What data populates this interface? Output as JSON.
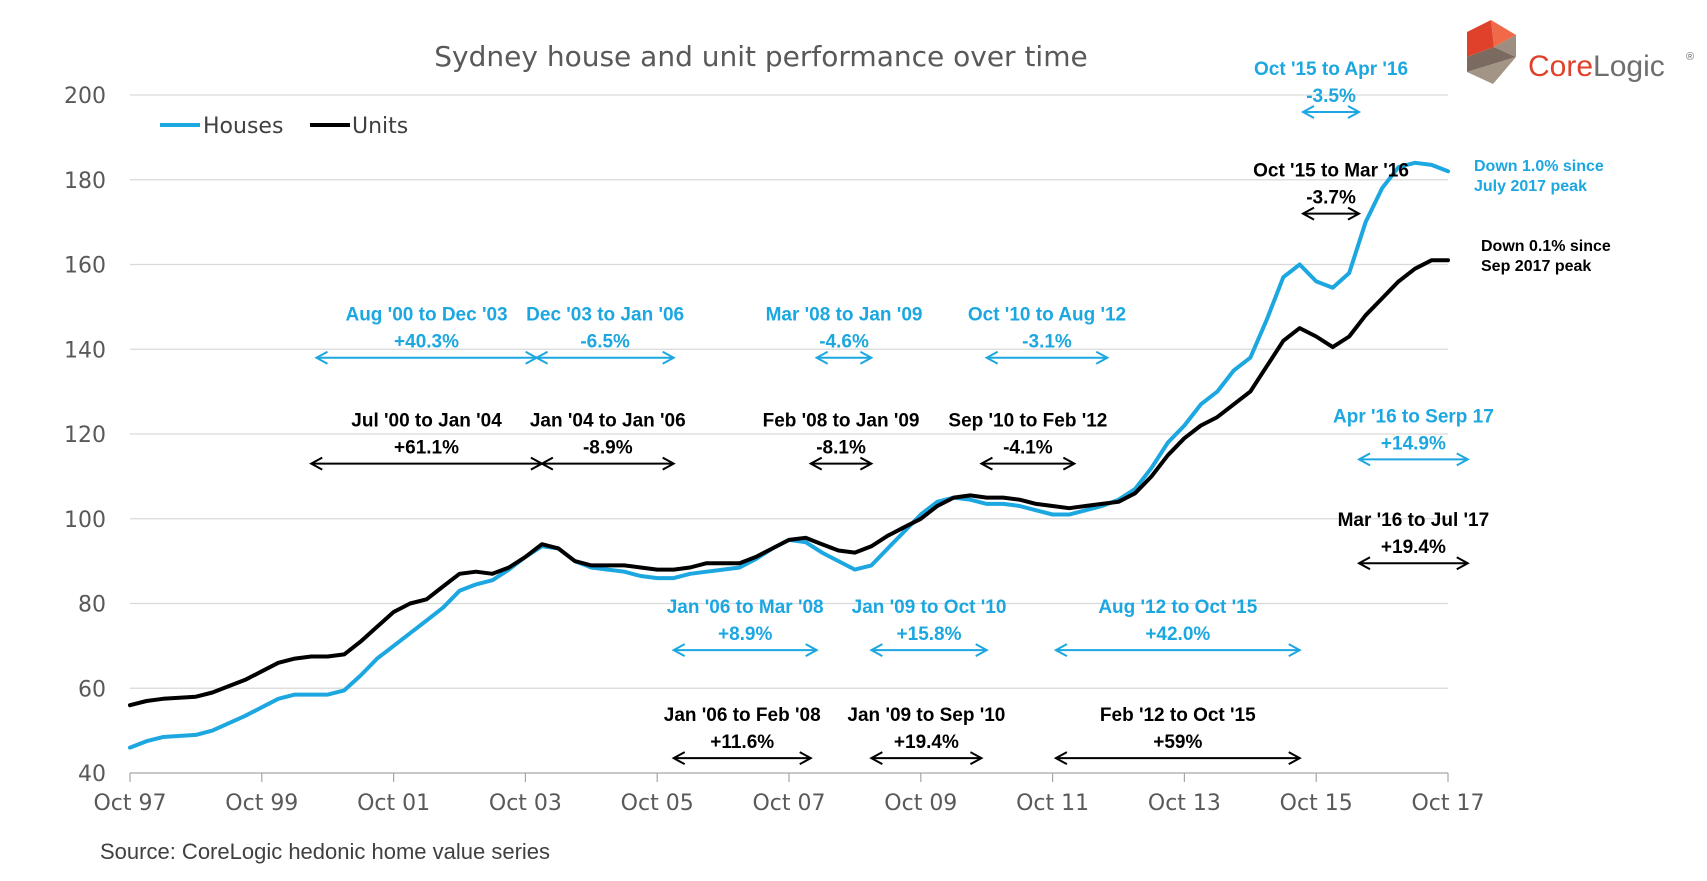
{
  "chart_data": {
    "type": "line",
    "title": "Sydney house and unit performance over time",
    "xlabel": "",
    "ylabel": "",
    "ylim": [
      40,
      200
    ],
    "yticks": [
      40,
      60,
      80,
      100,
      120,
      140,
      160,
      180,
      200
    ],
    "xlim": [
      1997.75,
      2017.75
    ],
    "xticks": [
      {
        "label": "Oct 97",
        "x": 1997.75
      },
      {
        "label": "Oct 99",
        "x": 1999.75
      },
      {
        "label": "Oct 01",
        "x": 2001.75
      },
      {
        "label": "Oct 03",
        "x": 2003.75
      },
      {
        "label": "Oct 05",
        "x": 2005.75
      },
      {
        "label": "Oct 07",
        "x": 2007.75
      },
      {
        "label": "Oct 09",
        "x": 2009.75
      },
      {
        "label": "Oct 11",
        "x": 2011.75
      },
      {
        "label": "Oct 13",
        "x": 2013.75
      },
      {
        "label": "Oct 15",
        "x": 2015.75
      },
      {
        "label": "Oct 17",
        "x": 2017.75
      }
    ],
    "grid": true,
    "legend": "top-left",
    "series": [
      {
        "name": "Houses",
        "color": "#1CA7E0",
        "points": [
          [
            1997.75,
            46
          ],
          [
            1998.0,
            47.5
          ],
          [
            1998.25,
            48.5
          ],
          [
            1998.75,
            49
          ],
          [
            1999.0,
            50
          ],
          [
            1999.5,
            53.5
          ],
          [
            1999.75,
            55.5
          ],
          [
            2000.0,
            57.5
          ],
          [
            2000.25,
            58.5
          ],
          [
            2000.5,
            58.5
          ],
          [
            2000.75,
            58.5
          ],
          [
            2001.0,
            59.5
          ],
          [
            2001.25,
            63
          ],
          [
            2001.5,
            67
          ],
          [
            2001.75,
            70
          ],
          [
            2002.0,
            73
          ],
          [
            2002.25,
            76
          ],
          [
            2002.5,
            79
          ],
          [
            2002.75,
            83
          ],
          [
            2003.0,
            84.5
          ],
          [
            2003.25,
            85.5
          ],
          [
            2003.5,
            88
          ],
          [
            2003.75,
            91
          ],
          [
            2004.0,
            93.5
          ],
          [
            2004.25,
            93
          ],
          [
            2004.5,
            90
          ],
          [
            2004.75,
            88.5
          ],
          [
            2005.0,
            88
          ],
          [
            2005.25,
            87.5
          ],
          [
            2005.5,
            86.5
          ],
          [
            2005.75,
            86
          ],
          [
            2006.0,
            86
          ],
          [
            2006.25,
            87
          ],
          [
            2006.5,
            87.5
          ],
          [
            2006.75,
            88
          ],
          [
            2007.0,
            88.5
          ],
          [
            2007.25,
            90.5
          ],
          [
            2007.5,
            93
          ],
          [
            2007.75,
            95
          ],
          [
            2008.0,
            94.5
          ],
          [
            2008.25,
            92
          ],
          [
            2008.5,
            90
          ],
          [
            2008.75,
            88
          ],
          [
            2009.0,
            89
          ],
          [
            2009.25,
            93
          ],
          [
            2009.5,
            97
          ],
          [
            2009.75,
            101
          ],
          [
            2010.0,
            104
          ],
          [
            2010.25,
            105
          ],
          [
            2010.5,
            104.5
          ],
          [
            2010.75,
            103.5
          ],
          [
            2011.0,
            103.5
          ],
          [
            2011.25,
            103
          ],
          [
            2011.5,
            102
          ],
          [
            2011.75,
            101
          ],
          [
            2012.0,
            101
          ],
          [
            2012.25,
            102
          ],
          [
            2012.5,
            103
          ],
          [
            2012.75,
            104.5
          ],
          [
            2013.0,
            107
          ],
          [
            2013.25,
            112
          ],
          [
            2013.5,
            118
          ],
          [
            2013.75,
            122
          ],
          [
            2014.0,
            127
          ],
          [
            2014.25,
            130
          ],
          [
            2014.5,
            135
          ],
          [
            2014.75,
            138
          ],
          [
            2015.0,
            147
          ],
          [
            2015.25,
            157
          ],
          [
            2015.5,
            160
          ],
          [
            2015.75,
            156
          ],
          [
            2016.0,
            154.5
          ],
          [
            2016.25,
            158
          ],
          [
            2016.5,
            170
          ],
          [
            2016.75,
            178
          ],
          [
            2017.0,
            183
          ],
          [
            2017.25,
            184
          ],
          [
            2017.5,
            183.5
          ],
          [
            2017.75,
            182
          ]
        ]
      },
      {
        "name": "Units",
        "color": "#000000",
        "points": [
          [
            1997.75,
            56
          ],
          [
            1998.0,
            57
          ],
          [
            1998.25,
            57.5
          ],
          [
            1998.75,
            58
          ],
          [
            1999.0,
            59
          ],
          [
            1999.5,
            62
          ],
          [
            1999.75,
            64
          ],
          [
            2000.0,
            66
          ],
          [
            2000.25,
            67
          ],
          [
            2000.5,
            67.5
          ],
          [
            2000.75,
            67.5
          ],
          [
            2001.0,
            68
          ],
          [
            2001.25,
            71
          ],
          [
            2001.5,
            74.5
          ],
          [
            2001.75,
            78
          ],
          [
            2002.0,
            80
          ],
          [
            2002.25,
            81
          ],
          [
            2002.5,
            84
          ],
          [
            2002.75,
            87
          ],
          [
            2003.0,
            87.5
          ],
          [
            2003.25,
            87
          ],
          [
            2003.5,
            88.5
          ],
          [
            2003.75,
            91
          ],
          [
            2004.0,
            94
          ],
          [
            2004.25,
            93
          ],
          [
            2004.5,
            90
          ],
          [
            2004.75,
            89
          ],
          [
            2005.0,
            89
          ],
          [
            2005.25,
            89
          ],
          [
            2005.5,
            88.5
          ],
          [
            2005.75,
            88
          ],
          [
            2006.0,
            88
          ],
          [
            2006.25,
            88.5
          ],
          [
            2006.5,
            89.5
          ],
          [
            2006.75,
            89.5
          ],
          [
            2007.0,
            89.5
          ],
          [
            2007.25,
            91
          ],
          [
            2007.5,
            93
          ],
          [
            2007.75,
            95
          ],
          [
            2008.0,
            95.5
          ],
          [
            2008.25,
            94
          ],
          [
            2008.5,
            92.5
          ],
          [
            2008.75,
            92
          ],
          [
            2009.0,
            93.5
          ],
          [
            2009.25,
            96
          ],
          [
            2009.5,
            98
          ],
          [
            2009.75,
            100
          ],
          [
            2010.0,
            103
          ],
          [
            2010.25,
            105
          ],
          [
            2010.5,
            105.5
          ],
          [
            2010.75,
            105
          ],
          [
            2011.0,
            105
          ],
          [
            2011.25,
            104.5
          ],
          [
            2011.5,
            103.5
          ],
          [
            2011.75,
            103
          ],
          [
            2012.0,
            102.5
          ],
          [
            2012.25,
            103
          ],
          [
            2012.5,
            103.5
          ],
          [
            2012.75,
            104
          ],
          [
            2013.0,
            106
          ],
          [
            2013.25,
            110
          ],
          [
            2013.5,
            115
          ],
          [
            2013.75,
            119
          ],
          [
            2014.0,
            122
          ],
          [
            2014.25,
            124
          ],
          [
            2014.5,
            127
          ],
          [
            2014.75,
            130
          ],
          [
            2015.0,
            136
          ],
          [
            2015.25,
            142
          ],
          [
            2015.5,
            145
          ],
          [
            2015.75,
            143
          ],
          [
            2016.0,
            140.5
          ],
          [
            2016.25,
            143
          ],
          [
            2016.5,
            148
          ],
          [
            2016.75,
            152
          ],
          [
            2017.0,
            156
          ],
          [
            2017.25,
            159
          ],
          [
            2017.5,
            161
          ],
          [
            2017.75,
            161
          ]
        ]
      }
    ],
    "annotations": [
      {
        "text": "Aug '00 to Dec '03",
        "line2": "+40.3%",
        "color": "#1CA7E0",
        "x_from": 2000.58,
        "x_to": 2003.92,
        "arrow_y": 138
      },
      {
        "text": "Jul '00 to Jan '04",
        "line2": "+61.1%",
        "color": "#000000",
        "x_from": 2000.5,
        "x_to": 2004.0,
        "arrow_y": 113
      },
      {
        "text": "Dec '03 to Jan '06",
        "line2": "-6.5%",
        "color": "#1CA7E0",
        "x_from": 2003.92,
        "x_to": 2006.0,
        "arrow_y": 138
      },
      {
        "text": "Jan '04 to Jan '06",
        "line2": "-8.9%",
        "color": "#000000",
        "x_from": 2004.0,
        "x_to": 2006.0,
        "arrow_y": 113
      },
      {
        "text": "Mar '08 to Jan '09",
        "line2": "-4.6%",
        "color": "#1CA7E0",
        "x_from": 2008.17,
        "x_to": 2009.0,
        "arrow_y": 138
      },
      {
        "text": "Feb '08 to Jan '09",
        "line2": "-8.1%",
        "color": "#000000",
        "x_from": 2008.08,
        "x_to": 2009.0,
        "arrow_y": 113
      },
      {
        "text": "Oct '10 to Aug '12",
        "line2": "-3.1%",
        "color": "#1CA7E0",
        "x_from": 2010.75,
        "x_to": 2012.58,
        "arrow_y": 138
      },
      {
        "text": "Sep '10 to Feb '12",
        "line2": "-4.1%",
        "color": "#000000",
        "x_from": 2010.67,
        "x_to": 2012.08,
        "arrow_y": 113
      },
      {
        "text": "Jan '06 to Mar '08",
        "line2": "+8.9%",
        "color": "#1CA7E0",
        "x_from": 2006.0,
        "x_to": 2008.17,
        "arrow_y": 69
      },
      {
        "text": "Jan '06 to Feb '08",
        "line2": "+11.6%",
        "color": "#000000",
        "x_from": 2006.0,
        "x_to": 2008.08,
        "arrow_y": 43.5
      },
      {
        "text": "Jan '09 to Oct '10",
        "line2": "+15.8%",
        "color": "#1CA7E0",
        "x_from": 2009.0,
        "x_to": 2010.75,
        "arrow_y": 69
      },
      {
        "text": "Jan '09 to Sep '10",
        "line2": "+19.4%",
        "color": "#000000",
        "x_from": 2009.0,
        "x_to": 2010.67,
        "arrow_y": 43.5
      },
      {
        "text": "Aug '12 to Oct '15",
        "line2": "+42.0%",
        "color": "#1CA7E0",
        "x_from": 2011.8,
        "x_to": 2015.5,
        "arrow_y": 69
      },
      {
        "text": "Feb '12 to Oct '15",
        "line2": "+59%",
        "color": "#000000",
        "x_from": 2011.8,
        "x_to": 2015.5,
        "arrow_y": 43.5
      },
      {
        "text": "Oct '15 to Apr '16",
        "line2": "-3.5%",
        "color": "#1CA7E0",
        "x_from": 2015.55,
        "x_to": 2016.4,
        "arrow_y": 196
      },
      {
        "text": "Oct '15 to Mar '16",
        "line2": "-3.7%",
        "color": "#000000",
        "x_from": 2015.55,
        "x_to": 2016.4,
        "arrow_y": 172
      },
      {
        "text": "Apr '16 to Serp 17",
        "line2": "+14.9%",
        "color": "#1CA7E0",
        "x_from": 2016.4,
        "x_to": 2018.05,
        "arrow_y": 114
      },
      {
        "text": "Mar '16 to Jul '17",
        "line2": "+19.4%",
        "color": "#000000",
        "x_from": 2016.4,
        "x_to": 2018.05,
        "arrow_y": 89.5
      }
    ],
    "end_notes": [
      {
        "line1": "Down 1.0% since",
        "line2": "July 2017 peak",
        "color": "#1CA7E0"
      },
      {
        "line1": "Down 0.1% since",
        "line2": "Sep 2017 peak",
        "color": "#000000"
      }
    ]
  },
  "source": "Source:  CoreLogic hedonic home value series",
  "logo": {
    "core": "Core",
    "logic": "Logic",
    "mark": "®",
    "red": "#E0412B",
    "grey": "#6E6E6E"
  }
}
